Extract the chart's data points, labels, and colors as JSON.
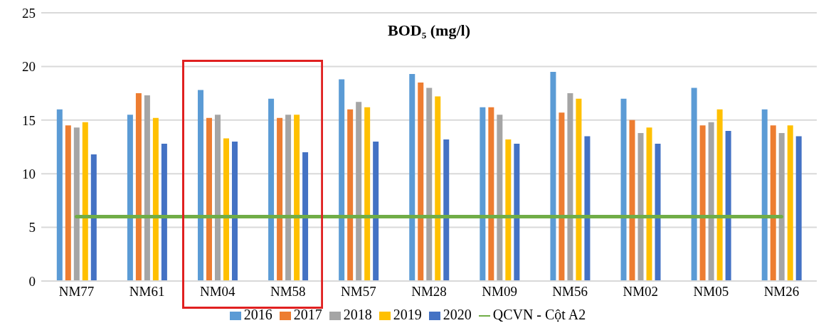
{
  "chart_data": {
    "type": "bar",
    "title": "BOD₅ (mg/l)",
    "categories": [
      "NM77",
      "NM61",
      "NM04",
      "NM58",
      "NM57",
      "NM28",
      "NM09",
      "NM56",
      "NM02",
      "NM05",
      "NM26"
    ],
    "series": [
      {
        "name": "2016",
        "color": "#5b9bd5",
        "values": [
          16,
          15.5,
          17.8,
          17,
          18.8,
          19.3,
          16.2,
          19.5,
          17,
          18,
          16
        ]
      },
      {
        "name": "2017",
        "color": "#ed7d31",
        "values": [
          14.5,
          17.5,
          15.2,
          15.2,
          16,
          18.5,
          16.2,
          15.7,
          15,
          14.5,
          14.5
        ]
      },
      {
        "name": "2018",
        "color": "#a5a5a5",
        "values": [
          14.3,
          17.3,
          15.5,
          15.5,
          16.7,
          18,
          15.5,
          17.5,
          13.8,
          14.8,
          13.8
        ]
      },
      {
        "name": "2019",
        "color": "#ffc000",
        "values": [
          14.8,
          15.2,
          13.3,
          15.5,
          16.2,
          17.2,
          13.2,
          17,
          14.3,
          16,
          14.5
        ]
      },
      {
        "name": "2020",
        "color": "#4472c4",
        "values": [
          11.8,
          12.8,
          13,
          12,
          13,
          13.2,
          12.8,
          13.5,
          12.8,
          14,
          13.5
        ]
      },
      {
        "name": "QCVN - Cột A2",
        "type": "line",
        "color": "#70ad47",
        "values": [
          6,
          6,
          6,
          6,
          6,
          6,
          6,
          6,
          6,
          6,
          6
        ]
      }
    ],
    "ylim": [
      0,
      25
    ],
    "yticks": [
      0,
      5,
      10,
      15,
      20,
      25
    ],
    "grid": "y",
    "legend": "bottom"
  }
}
